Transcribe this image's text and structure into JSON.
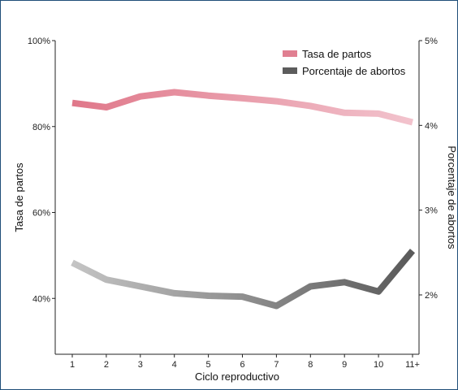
{
  "chart_data": {
    "type": "line",
    "categories": [
      "1",
      "2",
      "3",
      "4",
      "5",
      "6",
      "7",
      "8",
      "9",
      "10",
      "11+"
    ],
    "xlabel": "Ciclo reproductivo",
    "ylabel_left": "Tasa de partos",
    "ylabel_right": "Porcentaje de abortos",
    "y_left": {
      "ticks": [
        40,
        60,
        80,
        100
      ],
      "tick_labels": [
        "40%",
        "60%",
        "80%",
        "100%"
      ],
      "lim": [
        27,
        100
      ]
    },
    "y_right": {
      "ticks": [
        2,
        3,
        4,
        5
      ],
      "tick_labels": [
        "2%",
        "3%",
        "4%",
        "5%"
      ],
      "lim": [
        1.3,
        5.0
      ]
    },
    "grid": false,
    "legend": {
      "position": "top-right"
    },
    "series": [
      {
        "name": "Tasa de partos",
        "axis": "left",
        "values": [
          85.5,
          84.5,
          87.0,
          88.0,
          87.2,
          86.6,
          85.9,
          84.8,
          83.2,
          83.0,
          81.0
        ],
        "color_start": "#e0788a",
        "color_end": "#f2c3cd",
        "legend_color": "#e07f91"
      },
      {
        "name": "Porcentaje de abortos",
        "axis": "right",
        "values": [
          2.38,
          2.18,
          2.1,
          2.02,
          1.99,
          1.98,
          1.87,
          2.1,
          2.15,
          2.04,
          2.52
        ],
        "color_start": "#c4c4c4",
        "color_end": "#5a5a5a",
        "legend_color": "#5c5c5c"
      }
    ]
  }
}
